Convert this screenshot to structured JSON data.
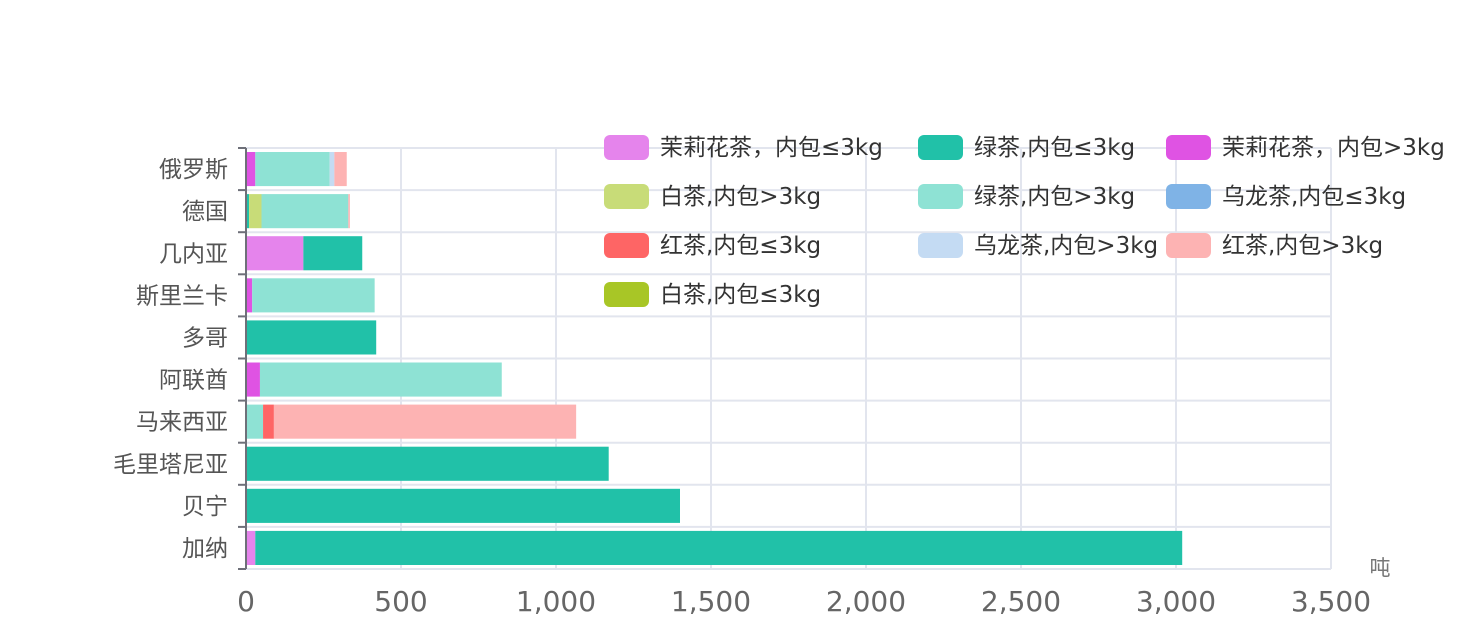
{
  "chart_data": {
    "type": "bar",
    "orientation": "horizontal",
    "stacked": true,
    "categories": [
      "加纳",
      "贝宁",
      "毛里塔尼亚",
      "马来西亚",
      "阿联酋",
      "多哥",
      "斯里兰卡",
      "几内亚",
      "德国",
      "俄罗斯"
    ],
    "x_unit": "吨",
    "xlim": [
      0,
      3500
    ],
    "x_ticks": [
      "0",
      "500",
      "1,000",
      "1,500",
      "2,000",
      "2,500",
      "3,000",
      "3,500"
    ],
    "grid": true,
    "legend_position": "top-right",
    "series": [
      {
        "name": "茉莉花茶，内包≤3kg",
        "color": "#e584ec",
        "values": [
          30,
          0,
          0,
          0,
          0,
          0,
          0,
          185,
          0,
          0
        ]
      },
      {
        "name": "绿茶,内包≤3kg",
        "color": "#21c1a8",
        "values": [
          2990,
          1400,
          1170,
          0,
          0,
          420,
          0,
          190,
          10,
          0
        ]
      },
      {
        "name": "茉莉花茶，内包>3kg",
        "color": "#df53e3",
        "values": [
          0,
          0,
          0,
          0,
          45,
          0,
          20,
          0,
          0,
          30
        ]
      },
      {
        "name": "白茶,内包>3kg",
        "color": "#c8dc78",
        "values": [
          0,
          0,
          0,
          0,
          0,
          0,
          0,
          0,
          40,
          0
        ]
      },
      {
        "name": "绿茶,内包>3kg",
        "color": "#8ee2d4",
        "values": [
          0,
          0,
          0,
          55,
          780,
          0,
          395,
          0,
          280,
          240
        ]
      },
      {
        "name": "乌龙茶,内包≤3kg",
        "color": "#7fb3e6",
        "values": [
          0,
          0,
          0,
          0,
          0,
          0,
          0,
          0,
          0,
          0
        ]
      },
      {
        "name": "红茶,内包≤3kg",
        "color": "#fe6565",
        "values": [
          0,
          0,
          0,
          35,
          0,
          0,
          0,
          0,
          0,
          0
        ]
      },
      {
        "name": "乌龙茶,内包>3kg",
        "color": "#c4dbf3",
        "values": [
          0,
          0,
          0,
          0,
          0,
          0,
          0,
          0,
          0,
          15
        ]
      },
      {
        "name": "红茶,内包>3kg",
        "color": "#fdb3b3",
        "values": [
          0,
          0,
          0,
          975,
          0,
          0,
          0,
          0,
          5,
          40
        ]
      },
      {
        "name": "白茶,内包≤3kg",
        "color": "#a8c626",
        "values": [
          0,
          0,
          0,
          0,
          0,
          0,
          0,
          0,
          0,
          0
        ]
      }
    ]
  }
}
